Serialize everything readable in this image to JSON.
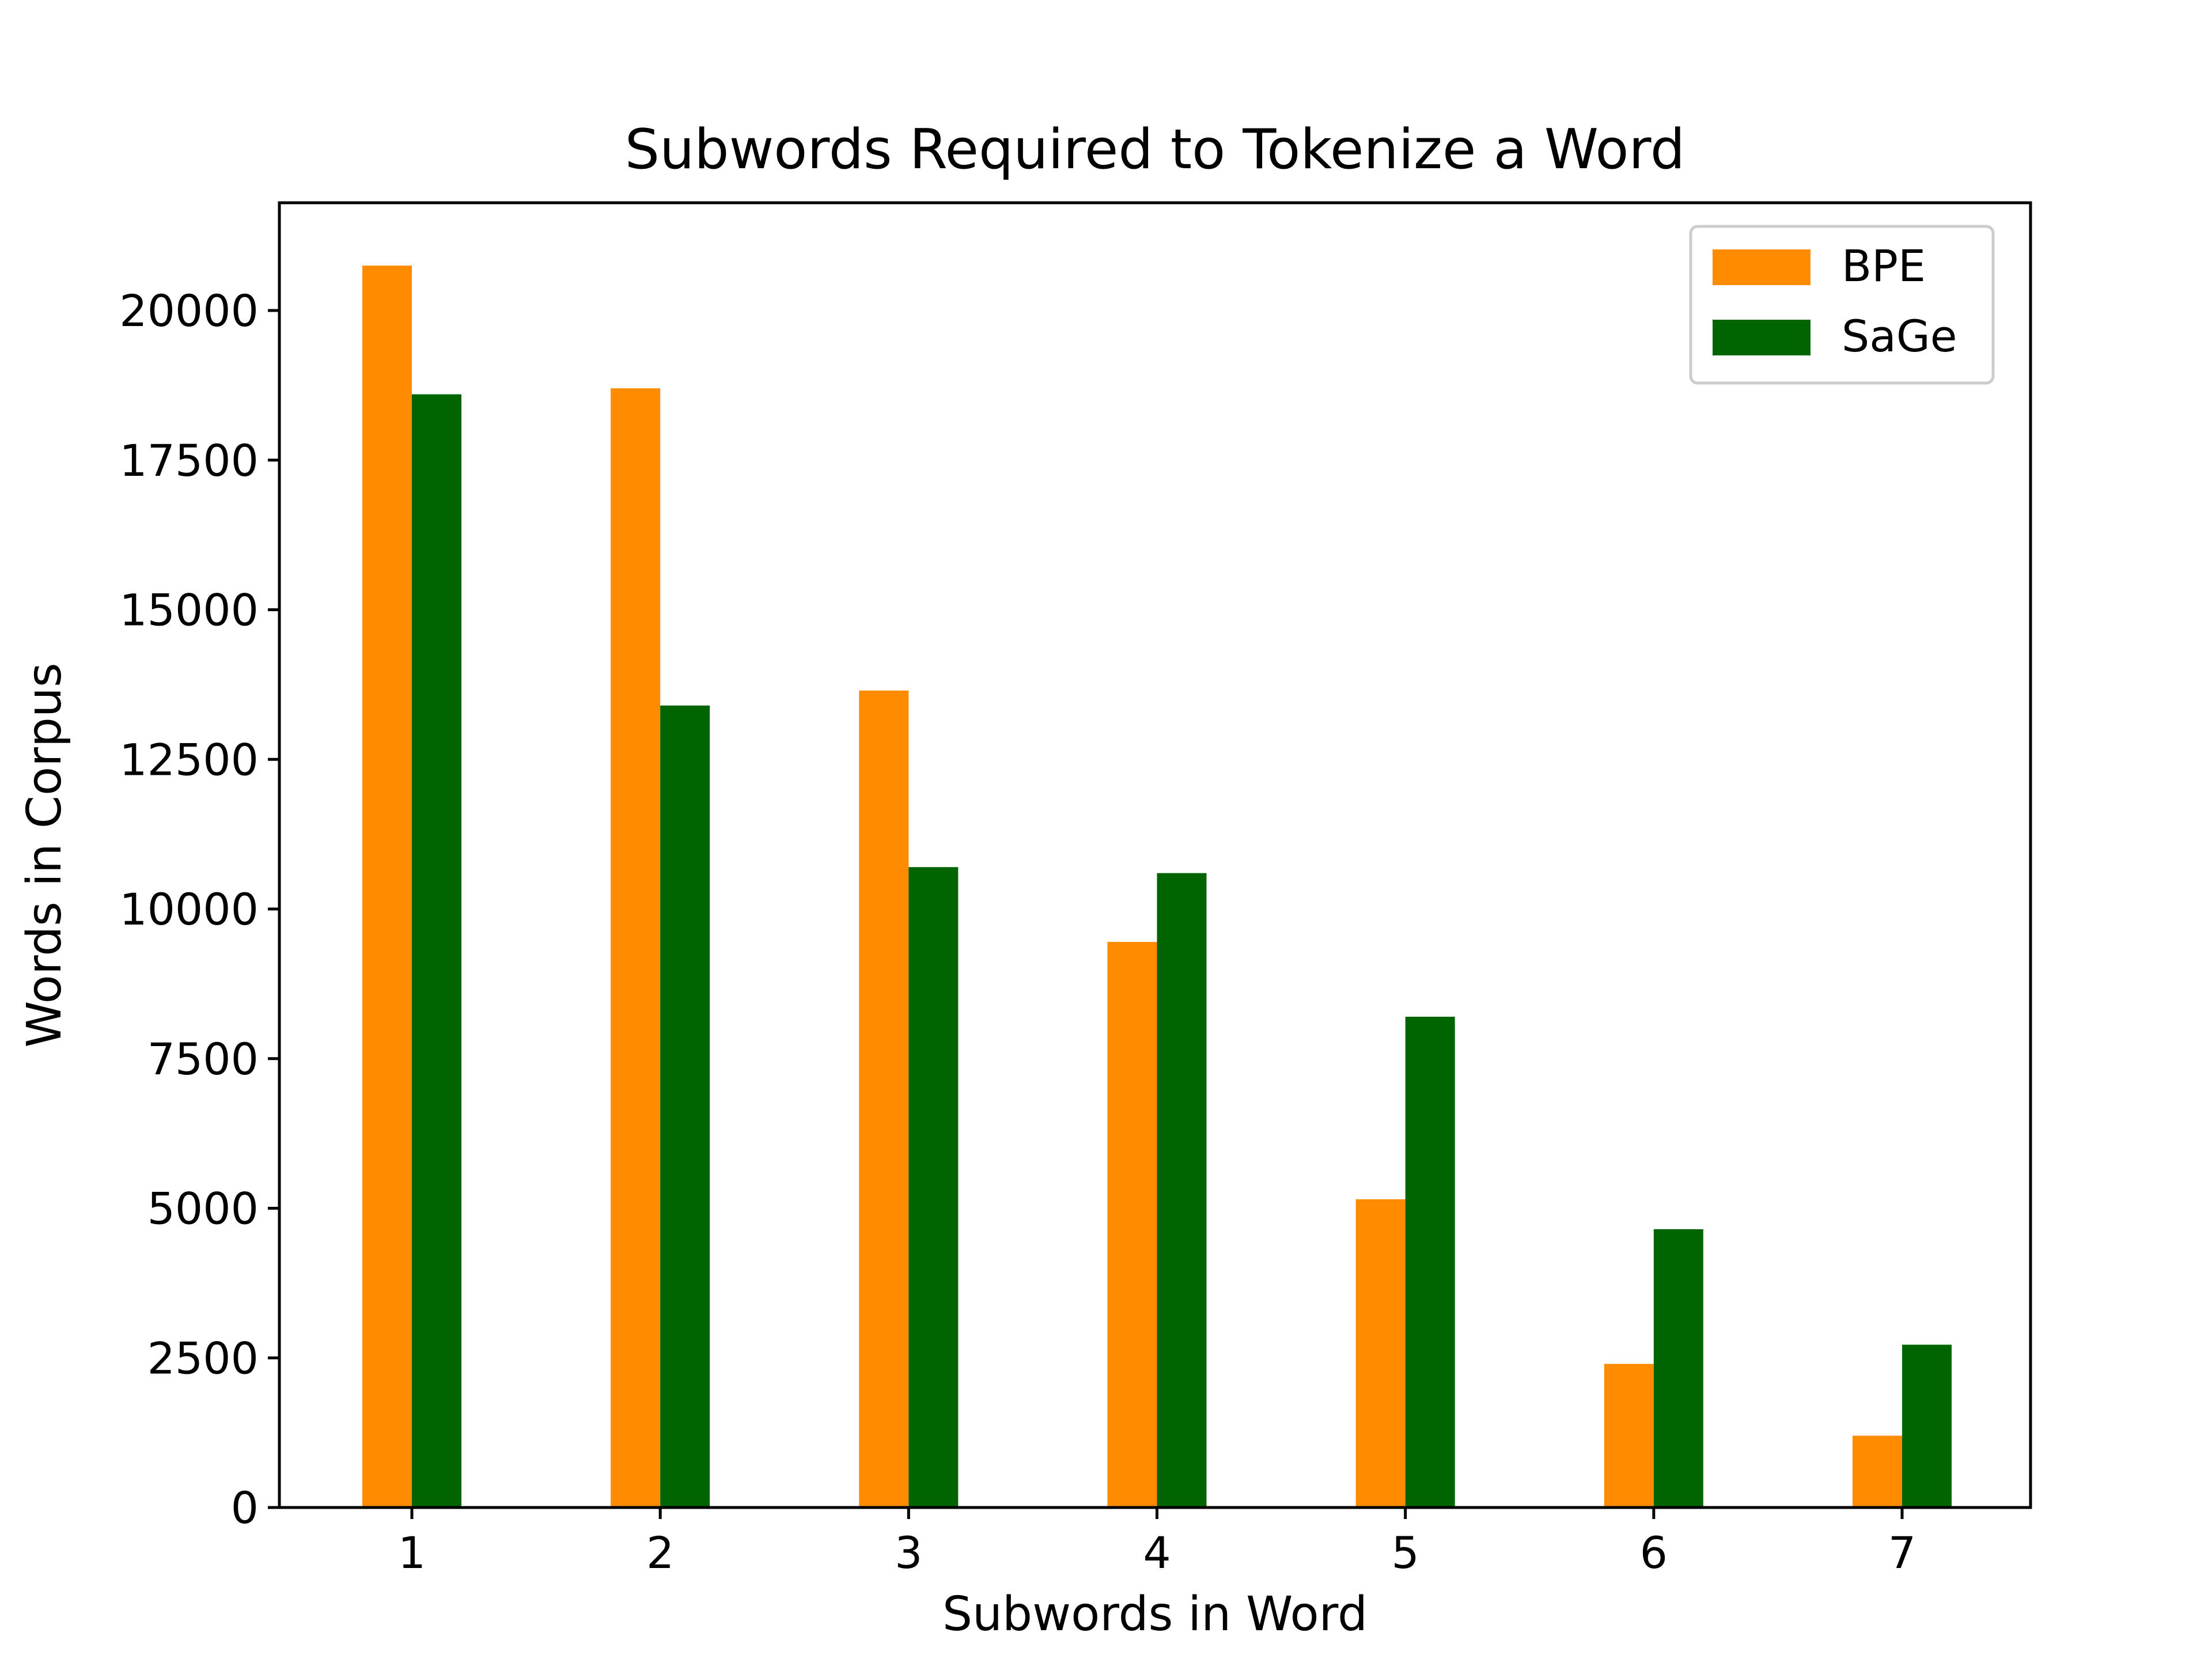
{
  "chart_data": {
    "type": "bar",
    "title": "Subwords Required to Tokenize a Word",
    "xlabel": "Subwords in Word",
    "ylabel": "Words in Corpus",
    "categories": [
      "1",
      "2",
      "3",
      "4",
      "5",
      "6",
      "7"
    ],
    "series": [
      {
        "name": "BPE",
        "color": "#ff8c00",
        "values": [
          20750,
          18700,
          13650,
          9450,
          5150,
          2400,
          1200
        ]
      },
      {
        "name": "SaGe",
        "color": "#006400",
        "values": [
          18600,
          13400,
          10700,
          10600,
          8200,
          4650,
          2720
        ]
      }
    ],
    "ylim": [
      0,
      21800
    ],
    "yticks": [
      0,
      2500,
      5000,
      7500,
      10000,
      12500,
      15000,
      17500,
      20000
    ],
    "ytick_labels": [
      "0",
      "2500",
      "5000",
      "7500",
      "10000",
      "12500",
      "15000",
      "17500",
      "20000"
    ],
    "grid": false,
    "legend": "top-right"
  }
}
